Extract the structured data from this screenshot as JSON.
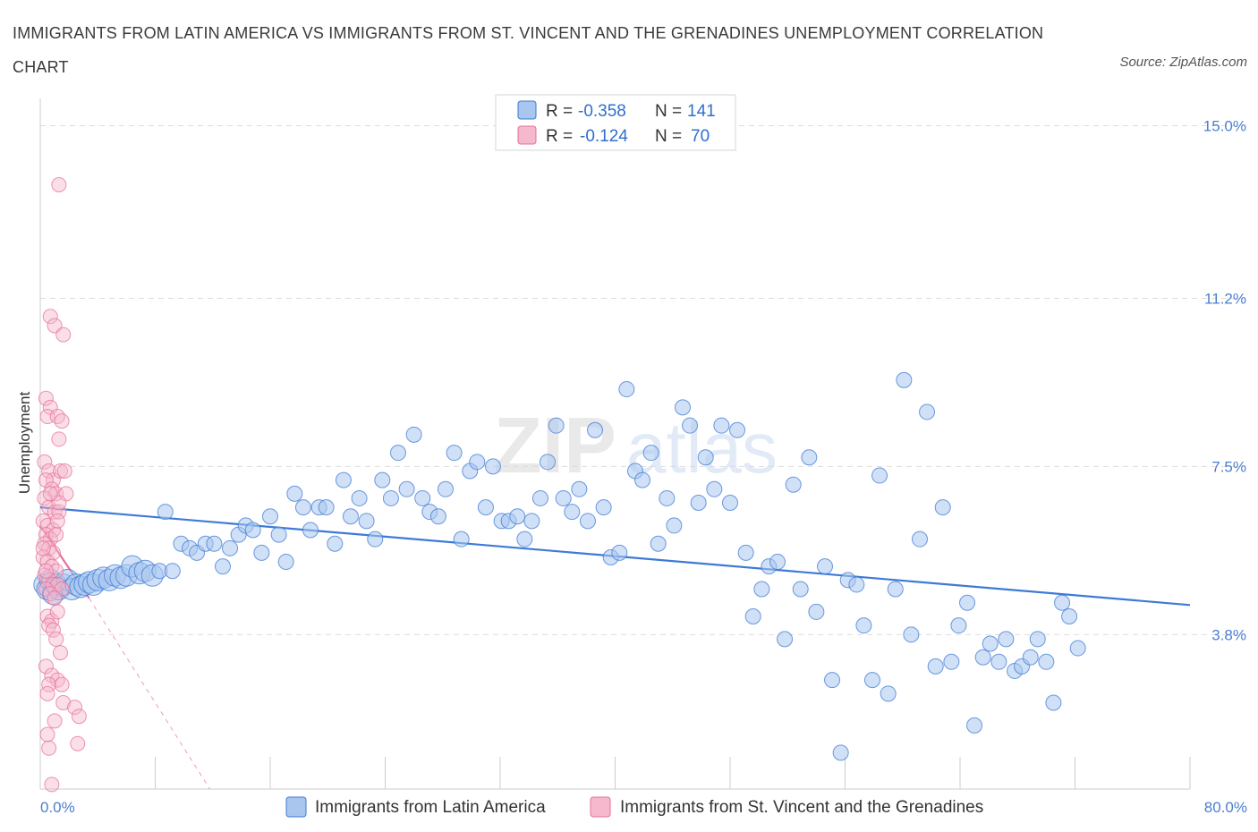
{
  "title": "IMMIGRANTS FROM LATIN AMERICA VS IMMIGRANTS FROM ST. VINCENT AND THE GRENADINES UNEMPLOYMENT CORRELATION CHART",
  "source": "Source: ZipAtlas.com",
  "watermark": {
    "zip": "ZIP",
    "atlas": "atlas"
  },
  "colors": {
    "blue": "#3d7ad6",
    "blue_fill": "#a9c6ef",
    "pink": "#e8709a",
    "pink_fill": "#f5b8cc",
    "grid": "#dddddd",
    "axis_text": "#4a7fcf"
  },
  "chart_data": {
    "type": "scatter",
    "title": "IMMIGRANTS FROM LATIN AMERICA VS IMMIGRANTS FROM ST. VINCENT AND THE GRENADINES UNEMPLOYMENT CORRELATION CHART",
    "xlabel": "",
    "ylabel": "Unemployment",
    "xlim": [
      0,
      80
    ],
    "ylim": [
      0.4,
      15.6
    ],
    "x_ticks": [
      "0.0%",
      "80.0%"
    ],
    "y_ticks": [
      {
        "value": 3.8,
        "label": "3.8%"
      },
      {
        "value": 7.5,
        "label": "7.5%"
      },
      {
        "value": 11.2,
        "label": "11.2%"
      },
      {
        "value": 15.0,
        "label": "15.0%"
      }
    ],
    "grid": true,
    "legend": {
      "placement": "top-center",
      "entries": [
        {
          "r_label": "R =",
          "r": "-0.358",
          "n_label": "N =",
          "n": "141"
        },
        {
          "r_label": "R =",
          "r": "-0.124",
          "n_label": "N =",
          "n": "70"
        }
      ]
    },
    "series": [
      {
        "name": "Immigrants from Latin America",
        "color": "#3d7ad6",
        "trend": {
          "x": [
            0,
            80
          ],
          "y": [
            6.6,
            4.45
          ]
        },
        "points": [
          [
            0.3,
            4.9
          ],
          [
            0.5,
            4.8
          ],
          [
            0.7,
            5.0
          ],
          [
            0.9,
            4.7
          ],
          [
            1.1,
            4.9
          ],
          [
            1.3,
            4.8
          ],
          [
            1.6,
            4.9
          ],
          [
            1.9,
            5.0
          ],
          [
            2.2,
            4.8
          ],
          [
            2.5,
            4.9
          ],
          [
            2.8,
            4.85
          ],
          [
            3.1,
            4.9
          ],
          [
            3.4,
            4.95
          ],
          [
            3.7,
            4.9
          ],
          [
            4.0,
            5.0
          ],
          [
            4.4,
            5.05
          ],
          [
            4.8,
            5.0
          ],
          [
            5.2,
            5.1
          ],
          [
            5.6,
            5.05
          ],
          [
            6.0,
            5.1
          ],
          [
            6.4,
            5.3
          ],
          [
            6.9,
            5.15
          ],
          [
            7.3,
            5.2
          ],
          [
            7.8,
            5.1
          ],
          [
            8.3,
            5.2
          ],
          [
            8.7,
            6.5
          ],
          [
            9.2,
            5.2
          ],
          [
            9.8,
            5.8
          ],
          [
            10.4,
            5.7
          ],
          [
            10.9,
            5.6
          ],
          [
            11.5,
            5.8
          ],
          [
            12.1,
            5.8
          ],
          [
            12.7,
            5.3
          ],
          [
            13.2,
            5.7
          ],
          [
            13.8,
            6.0
          ],
          [
            14.3,
            6.2
          ],
          [
            14.8,
            6.1
          ],
          [
            15.4,
            5.6
          ],
          [
            16.0,
            6.4
          ],
          [
            16.6,
            6.0
          ],
          [
            17.1,
            5.4
          ],
          [
            17.7,
            6.9
          ],
          [
            18.3,
            6.6
          ],
          [
            18.8,
            6.1
          ],
          [
            19.4,
            6.6
          ],
          [
            19.9,
            6.6
          ],
          [
            20.5,
            5.8
          ],
          [
            21.1,
            7.2
          ],
          [
            21.6,
            6.4
          ],
          [
            22.2,
            6.8
          ],
          [
            22.7,
            6.3
          ],
          [
            23.3,
            5.9
          ],
          [
            23.8,
            7.2
          ],
          [
            24.4,
            6.8
          ],
          [
            24.9,
            7.8
          ],
          [
            25.5,
            7.0
          ],
          [
            26.0,
            8.2
          ],
          [
            26.6,
            6.8
          ],
          [
            27.1,
            6.5
          ],
          [
            27.7,
            6.4
          ],
          [
            28.2,
            7.0
          ],
          [
            28.8,
            7.8
          ],
          [
            29.3,
            5.9
          ],
          [
            29.9,
            7.4
          ],
          [
            30.4,
            7.6
          ],
          [
            31.0,
            6.6
          ],
          [
            31.5,
            7.5
          ],
          [
            32.1,
            6.3
          ],
          [
            32.6,
            6.3
          ],
          [
            33.2,
            6.4
          ],
          [
            33.7,
            5.9
          ],
          [
            34.2,
            6.3
          ],
          [
            34.8,
            6.8
          ],
          [
            35.3,
            7.6
          ],
          [
            35.9,
            8.4
          ],
          [
            36.4,
            6.8
          ],
          [
            37.0,
            6.5
          ],
          [
            37.5,
            7.0
          ],
          [
            38.1,
            6.3
          ],
          [
            38.6,
            8.3
          ],
          [
            39.2,
            6.6
          ],
          [
            39.7,
            5.5
          ],
          [
            40.3,
            5.6
          ],
          [
            40.8,
            9.2
          ],
          [
            41.4,
            7.4
          ],
          [
            41.9,
            7.2
          ],
          [
            42.5,
            7.8
          ],
          [
            43.0,
            5.8
          ],
          [
            43.6,
            6.8
          ],
          [
            44.1,
            6.2
          ],
          [
            44.7,
            8.8
          ],
          [
            45.2,
            8.4
          ],
          [
            45.8,
            6.7
          ],
          [
            46.3,
            7.7
          ],
          [
            46.9,
            7.0
          ],
          [
            47.4,
            8.4
          ],
          [
            48.0,
            6.7
          ],
          [
            48.5,
            8.3
          ],
          [
            49.1,
            5.6
          ],
          [
            49.6,
            4.2
          ],
          [
            50.2,
            4.8
          ],
          [
            50.7,
            5.3
          ],
          [
            51.3,
            5.4
          ],
          [
            51.8,
            3.7
          ],
          [
            52.4,
            7.1
          ],
          [
            52.9,
            4.8
          ],
          [
            53.5,
            7.7
          ],
          [
            54.0,
            4.3
          ],
          [
            54.6,
            5.3
          ],
          [
            55.1,
            2.8
          ],
          [
            55.7,
            1.2
          ],
          [
            56.2,
            5.0
          ],
          [
            56.8,
            4.9
          ],
          [
            57.3,
            4.0
          ],
          [
            57.9,
            2.8
          ],
          [
            58.4,
            7.3
          ],
          [
            59.0,
            2.5
          ],
          [
            59.5,
            4.8
          ],
          [
            60.1,
            9.4
          ],
          [
            60.6,
            3.8
          ],
          [
            61.2,
            5.9
          ],
          [
            61.7,
            8.7
          ],
          [
            62.3,
            3.1
          ],
          [
            62.8,
            6.6
          ],
          [
            63.4,
            3.2
          ],
          [
            63.9,
            4.0
          ],
          [
            64.5,
            4.5
          ],
          [
            65.0,
            1.8
          ],
          [
            65.6,
            3.3
          ],
          [
            66.1,
            3.6
          ],
          [
            66.7,
            3.2
          ],
          [
            67.2,
            3.7
          ],
          [
            67.8,
            3.0
          ],
          [
            68.3,
            3.1
          ],
          [
            68.9,
            3.3
          ],
          [
            69.4,
            3.7
          ],
          [
            70.0,
            3.2
          ],
          [
            70.5,
            2.3
          ],
          [
            71.1,
            4.5
          ],
          [
            71.6,
            4.2
          ],
          [
            72.2,
            3.5
          ]
        ]
      },
      {
        "name": "Immigrants from St. Vincent and the Grenadines",
        "color": "#e8709a",
        "trend": {
          "x": [
            0,
            3.4
          ],
          "y": [
            6.2,
            4.6
          ]
        },
        "trend_ext": {
          "x": [
            3.4,
            11.8
          ],
          "y": [
            4.6,
            0.4
          ]
        },
        "points": [
          [
            1.3,
            13.7
          ],
          [
            0.7,
            10.8
          ],
          [
            1.0,
            10.6
          ],
          [
            1.6,
            10.4
          ],
          [
            0.4,
            9.0
          ],
          [
            0.7,
            8.8
          ],
          [
            0.5,
            8.6
          ],
          [
            1.2,
            8.6
          ],
          [
            1.5,
            8.5
          ],
          [
            1.3,
            8.1
          ],
          [
            0.3,
            7.6
          ],
          [
            0.6,
            7.4
          ],
          [
            0.9,
            7.2
          ],
          [
            1.4,
            7.4
          ],
          [
            1.7,
            7.4
          ],
          [
            0.4,
            7.2
          ],
          [
            0.8,
            7.0
          ],
          [
            1.1,
            6.9
          ],
          [
            1.8,
            6.9
          ],
          [
            0.3,
            6.8
          ],
          [
            0.6,
            6.6
          ],
          [
            1.0,
            6.5
          ],
          [
            1.3,
            6.5
          ],
          [
            0.2,
            6.3
          ],
          [
            0.5,
            6.2
          ],
          [
            0.9,
            6.1
          ],
          [
            1.2,
            6.3
          ],
          [
            0.4,
            6.0
          ],
          [
            0.7,
            5.9
          ],
          [
            1.1,
            6.0
          ],
          [
            0.3,
            5.8
          ],
          [
            0.6,
            5.7
          ],
          [
            0.9,
            5.6
          ],
          [
            0.2,
            5.5
          ],
          [
            0.5,
            5.4
          ],
          [
            0.8,
            5.3
          ],
          [
            1.1,
            5.2
          ],
          [
            0.3,
            5.1
          ],
          [
            0.6,
            5.0
          ],
          [
            0.9,
            4.9
          ],
          [
            1.2,
            4.9
          ],
          [
            1.5,
            4.8
          ],
          [
            0.4,
            4.8
          ],
          [
            0.7,
            4.7
          ],
          [
            0.5,
            4.2
          ],
          [
            0.8,
            4.1
          ],
          [
            0.6,
            4.0
          ],
          [
            0.9,
            3.9
          ],
          [
            1.1,
            3.7
          ],
          [
            1.4,
            3.4
          ],
          [
            0.4,
            3.1
          ],
          [
            0.8,
            2.9
          ],
          [
            1.2,
            2.8
          ],
          [
            0.6,
            2.7
          ],
          [
            1.5,
            2.7
          ],
          [
            0.5,
            2.5
          ],
          [
            1.6,
            2.3
          ],
          [
            2.4,
            2.2
          ],
          [
            2.7,
            2.0
          ],
          [
            1.0,
            1.9
          ],
          [
            0.5,
            1.6
          ],
          [
            2.6,
            1.4
          ],
          [
            0.6,
            1.3
          ],
          [
            0.8,
            0.5
          ],
          [
            1.3,
            6.7
          ],
          [
            0.2,
            5.7
          ],
          [
            0.4,
            5.2
          ],
          [
            1.0,
            4.6
          ],
          [
            0.7,
            6.9
          ],
          [
            1.2,
            4.3
          ]
        ]
      }
    ]
  },
  "bottom_legend": [
    "Immigrants from Latin America",
    "Immigrants from St. Vincent and the Grenadines"
  ]
}
